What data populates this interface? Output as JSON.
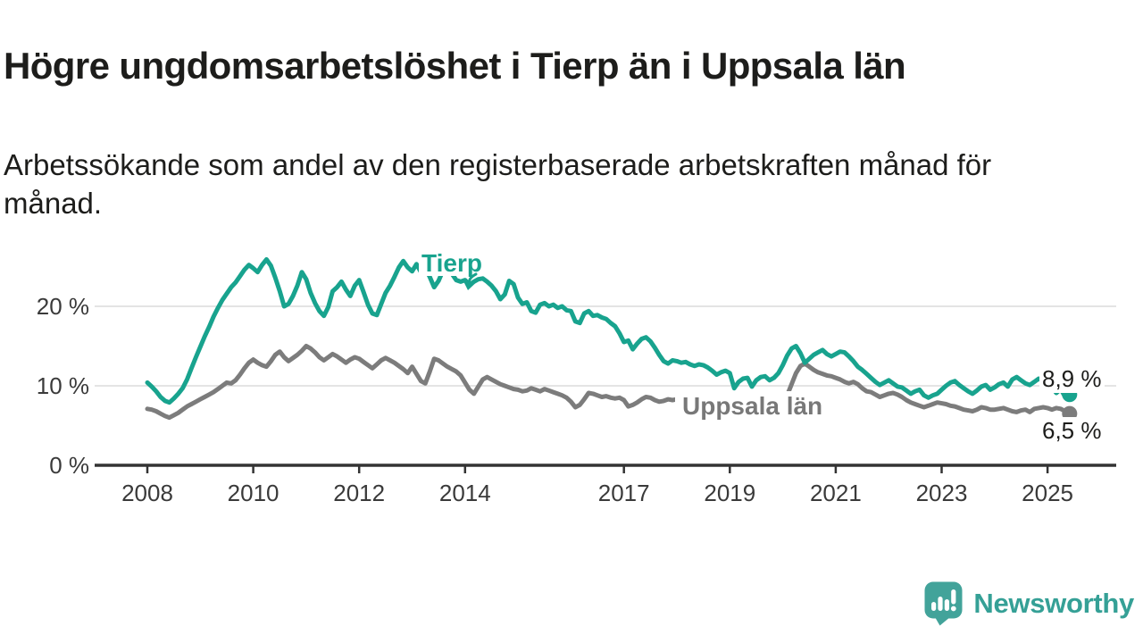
{
  "header": {
    "title": "Högre ungdomsarbetslöshet i Tierp än i Uppsala län",
    "subtitle": "Arbetssökande som andel av den registerbaserade arbetskraften månad för månad.",
    "subtitle_lines": [
      "Arbetssökande som andel av den registerbaserade arbetskraften månad för",
      "månad."
    ]
  },
  "annotations": {
    "tierp_label": "Tierp",
    "uppsala_label": "Uppsala län",
    "tierp_end_value": "8,9 %",
    "uppsala_end_value": "6,5 %"
  },
  "footer": {
    "brand": "Newsworthy"
  },
  "colors": {
    "tierp": "#18a38e",
    "uppsala": "#7c7c7c",
    "grid": "#dcdcdc",
    "axis": "#333333",
    "axis_text": "#3a3a3a",
    "text": "#1d1d1b",
    "logo": "#42a39a",
    "wordmark": "#35a096"
  },
  "chart_data": {
    "type": "line",
    "title": "Högre ungdomsarbetslöshet i Tierp än i Uppsala län",
    "xlabel": "",
    "ylabel": "Arbetssökande som andel av den registerbaserade arbetskraften",
    "x_start_year": 2008.0,
    "x_step_months": 1,
    "xlim": [
      2007.0,
      2026.3
    ],
    "ylim": [
      0,
      27.5
    ],
    "grid": "horizontal",
    "legend_position": "inline-labels",
    "y_ticks": [
      {
        "value": 0,
        "label": "0 %"
      },
      {
        "value": 10,
        "label": "10 %"
      },
      {
        "value": 20,
        "label": "20 %"
      }
    ],
    "x_ticks": [
      {
        "year": 2008,
        "label": "2008"
      },
      {
        "year": 2010,
        "label": "2010"
      },
      {
        "year": 2012,
        "label": "2012"
      },
      {
        "year": 2014,
        "label": "2014"
      },
      {
        "year": 2017,
        "label": "2017"
      },
      {
        "year": 2019,
        "label": "2019"
      },
      {
        "year": 2021,
        "label": "2021"
      },
      {
        "year": 2023,
        "label": "2023"
      },
      {
        "year": 2025,
        "label": "2025"
      }
    ],
    "series": [
      {
        "name": "Tierp",
        "color": "#18a38e",
        "end_label": "8,9 %",
        "end_value": 8.9,
        "end_dot": true,
        "values": [
          10.4,
          9.9,
          9.3,
          8.6,
          8.1,
          7.9,
          8.4,
          9.0,
          9.7,
          10.8,
          12.2,
          13.6,
          14.9,
          16.2,
          17.4,
          18.7,
          19.8,
          20.8,
          21.6,
          22.4,
          23.0,
          23.8,
          24.6,
          25.2,
          24.8,
          24.3,
          25.2,
          25.9,
          25.1,
          23.6,
          21.9,
          20.0,
          20.3,
          21.3,
          22.6,
          24.3,
          23.4,
          21.7,
          20.4,
          19.4,
          18.8,
          19.9,
          21.9,
          22.4,
          23.1,
          22.1,
          21.3,
          22.6,
          23.3,
          21.8,
          20.2,
          19.1,
          18.9,
          20.3,
          21.7,
          22.6,
          23.7,
          24.9,
          25.7,
          24.9,
          24.4,
          25.3,
          24.3,
          24.8,
          23.7,
          22.4,
          23.2,
          24.5,
          25.1,
          24.1,
          23.3,
          23.1,
          23.3,
          22.7,
          23.1,
          23.4,
          23.5,
          23.1,
          22.6,
          21.9,
          20.9,
          21.5,
          23.2,
          22.8,
          21.1,
          20.3,
          20.5,
          19.4,
          19.2,
          20.2,
          20.4,
          20.0,
          20.2,
          19.8,
          20.0,
          19.5,
          19.4,
          18.1,
          17.9,
          19.1,
          19.4,
          18.8,
          18.9,
          18.6,
          18.4,
          17.9,
          17.5,
          16.6,
          15.5,
          15.7,
          14.6,
          15.3,
          15.9,
          16.1,
          15.6,
          14.8,
          13.9,
          13.1,
          12.8,
          13.2,
          13.1,
          12.9,
          13.0,
          12.7,
          12.5,
          12.7,
          12.6,
          12.3,
          11.9,
          11.4,
          11.7,
          11.9,
          11.6,
          9.7,
          10.5,
          10.9,
          11.0,
          9.9,
          10.7,
          11.1,
          11.2,
          10.7,
          11.0,
          11.6,
          12.6,
          13.8,
          14.7,
          15.0,
          14.1,
          12.9,
          13.4,
          13.9,
          14.2,
          14.5,
          14.0,
          13.7,
          14.0,
          14.3,
          14.2,
          13.7,
          13.1,
          12.4,
          12.0,
          11.5,
          11.0,
          10.5,
          10.1,
          10.4,
          10.7,
          10.3,
          9.9,
          9.8,
          9.4,
          9.0,
          9.3,
          9.5,
          8.8,
          8.5,
          8.8,
          9.0,
          9.5,
          10.0,
          10.4,
          10.6,
          10.1,
          9.7,
          9.3,
          9.0,
          9.4,
          9.9,
          10.1,
          9.5,
          9.8,
          10.2,
          10.4,
          9.9,
          10.8,
          11.1,
          10.7,
          10.3,
          10.1,
          10.5,
          10.9,
          10.6,
          10.4,
          9.8,
          9.1,
          9.6,
          8.6,
          8.9
        ]
      },
      {
        "name": "Uppsala län",
        "color": "#7c7c7c",
        "end_label": "6,5 %",
        "end_value": 6.5,
        "end_dot": true,
        "values": [
          7.1,
          7.0,
          6.8,
          6.5,
          6.2,
          6.0,
          6.3,
          6.6,
          7.0,
          7.4,
          7.7,
          8.0,
          8.3,
          8.6,
          8.9,
          9.2,
          9.6,
          10.0,
          10.4,
          10.3,
          10.7,
          11.4,
          12.2,
          12.9,
          13.3,
          12.9,
          12.6,
          12.4,
          13.1,
          13.9,
          14.3,
          13.6,
          13.1,
          13.5,
          13.9,
          14.4,
          15.0,
          14.7,
          14.2,
          13.6,
          13.2,
          13.6,
          14.0,
          13.7,
          13.3,
          12.9,
          13.3,
          13.6,
          13.4,
          13.0,
          12.6,
          12.2,
          12.7,
          13.2,
          13.5,
          13.2,
          12.9,
          12.5,
          12.1,
          11.6,
          12.4,
          11.5,
          10.6,
          10.3,
          11.8,
          13.4,
          13.2,
          12.8,
          12.4,
          12.1,
          11.8,
          11.3,
          10.4,
          9.5,
          9.0,
          9.9,
          10.8,
          11.1,
          10.8,
          10.5,
          10.2,
          10.0,
          9.8,
          9.6,
          9.5,
          9.3,
          9.4,
          9.7,
          9.5,
          9.3,
          9.6,
          9.4,
          9.2,
          9.0,
          8.8,
          8.5,
          8.0,
          7.3,
          7.6,
          8.3,
          9.1,
          9.0,
          8.8,
          8.6,
          8.7,
          8.5,
          8.4,
          8.5,
          8.2,
          7.4,
          7.6,
          7.9,
          8.3,
          8.6,
          8.5,
          8.2,
          8.0,
          8.1,
          8.3,
          8.2,
          8.3,
          8.1,
          7.9,
          7.7,
          7.6,
          7.8,
          7.9,
          7.7,
          7.5,
          7.4,
          7.5,
          7.4,
          7.5,
          7.3,
          7.2,
          7.4,
          7.3,
          7.2,
          7.4,
          7.5,
          7.4,
          7.3,
          7.4,
          7.6,
          8.0,
          8.8,
          10.2,
          11.6,
          12.5,
          12.8,
          12.4,
          12.0,
          11.7,
          11.5,
          11.3,
          11.2,
          11.0,
          10.8,
          10.5,
          10.3,
          10.5,
          10.2,
          9.7,
          9.3,
          9.2,
          8.9,
          8.6,
          8.8,
          9.0,
          9.1,
          8.9,
          8.6,
          8.2,
          7.9,
          7.7,
          7.5,
          7.3,
          7.5,
          7.7,
          7.9,
          7.8,
          7.7,
          7.5,
          7.4,
          7.2,
          7.0,
          6.9,
          6.8,
          7.0,
          7.3,
          7.2,
          7.0,
          7.0,
          7.1,
          7.2,
          7.0,
          6.8,
          6.7,
          6.9,
          7.0,
          6.7,
          7.1,
          7.2,
          7.3,
          7.2,
          7.0,
          7.2,
          7.1,
          6.8,
          6.5
        ]
      }
    ]
  }
}
